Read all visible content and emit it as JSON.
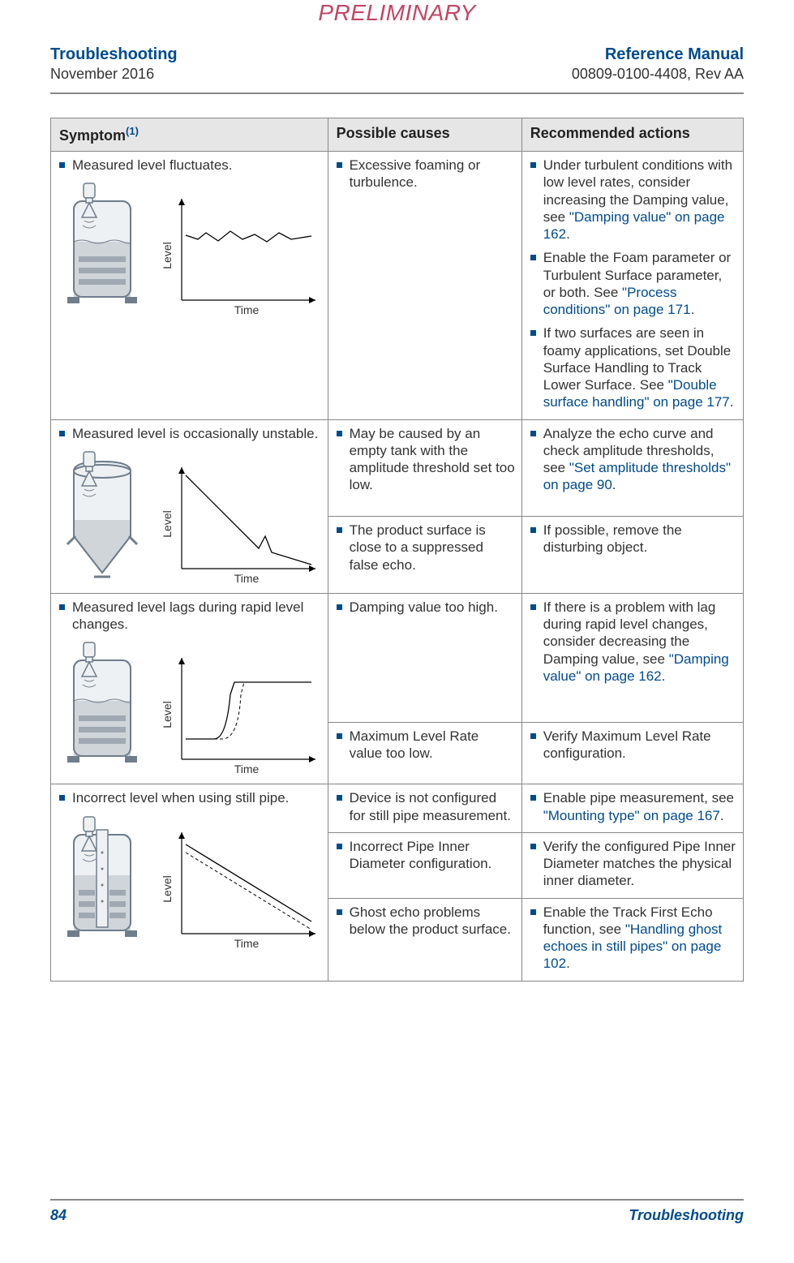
{
  "watermark": "PRELIMINARY",
  "header": {
    "left_title": "Troubleshooting",
    "left_sub": "November 2016",
    "right_title": "Reference Manual",
    "right_sub": "00809-0100-4408, Rev AA"
  },
  "colors": {
    "brand_blue": "#004b8d",
    "watermark_red": "#c64462",
    "header_bg": "#e6e6e6",
    "border": "#888888",
    "tank_stroke": "#6f7d8c",
    "tank_fill": "#eef1f3",
    "liquid_fill": "#d0d5da"
  },
  "table": {
    "head": {
      "c1": "Symptom",
      "c1_sup": "(1)",
      "c2": "Possible causes",
      "c3": "Recommended actions"
    },
    "rows": [
      {
        "symptom": "Measured level fluctuates.",
        "diagram": {
          "tank_type": "cylinder",
          "trace": "fluctuate",
          "y_label": "Level",
          "x_label": "Time"
        },
        "subrows": [
          {
            "cause": "Excessive foaming or turbulence.",
            "actions": [
              {
                "pre": "Under turbulent conditions with low level rates, consider increasing the Damping value, see ",
                "link": "\"Damping value\" on page 162",
                "post": "."
              },
              {
                "pre": "Enable the Foam parameter or Turbulent Surface parameter, or both. See ",
                "link": "\"Process conditions\" on page 171",
                "post": "."
              },
              {
                "pre": "If two surfaces are seen in foamy applications, set Double Surface Handling to Track Lower Surface. See ",
                "link": "\"Double surface handling\" on page 177",
                "post": "."
              }
            ]
          }
        ]
      },
      {
        "symptom": "Measured level is occasionally unstable.",
        "diagram": {
          "tank_type": "cone",
          "trace": "unstable",
          "y_label": "Level",
          "x_label": "Time"
        },
        "subrows": [
          {
            "cause": "May be caused by an empty tank with the amplitude threshold set too low.",
            "actions": [
              {
                "pre": "Analyze the echo curve and check amplitude thresholds, see ",
                "link": "\"Set amplitude thresholds\" on page 90",
                "post": "."
              }
            ]
          },
          {
            "cause": "The product surface is close to a suppressed false echo.",
            "actions": [
              {
                "pre": "If possible, remove the disturbing object.",
                "link": "",
                "post": ""
              }
            ]
          }
        ]
      },
      {
        "symptom": "Measured level lags during rapid level changes.",
        "diagram": {
          "tank_type": "cylinder",
          "trace": "lag",
          "y_label": "Level",
          "x_label": "Time"
        },
        "subrows": [
          {
            "cause": "Damping value too high.",
            "actions": [
              {
                "pre": "If there is a problem with lag during rapid level changes, consider decreasing the Damping value, see ",
                "link": "\"Damping value\" on page 162",
                "post": "."
              }
            ]
          },
          {
            "cause": "Maximum Level Rate value too low.",
            "actions": [
              {
                "pre": "Verify Maximum Level Rate configuration.",
                "link": "",
                "post": ""
              }
            ]
          }
        ]
      },
      {
        "symptom": "Incorrect level when using still pipe.",
        "diagram": {
          "tank_type": "stillpipe",
          "trace": "offset",
          "y_label": "Level",
          "x_label": "Time"
        },
        "subrows": [
          {
            "cause": "Device is not configured for still pipe measurement.",
            "actions": [
              {
                "pre": "Enable pipe measurement, see ",
                "link": "\"Mounting type\" on page 167",
                "post": "."
              }
            ]
          },
          {
            "cause": "Incorrect Pipe Inner Diameter configuration.",
            "actions": [
              {
                "pre": "Verify the configured Pipe Inner Diameter matches the physical inner diameter.",
                "link": "",
                "post": ""
              }
            ]
          },
          {
            "cause": "Ghost echo problems below the product surface.",
            "actions": [
              {
                "pre": "Enable the Track First Echo function, see ",
                "link": "\"Handling ghost echoes in still pipes\" on page 102",
                "post": "."
              }
            ]
          }
        ]
      }
    ]
  },
  "footer": {
    "page": "84",
    "section": "Troubleshooting"
  }
}
